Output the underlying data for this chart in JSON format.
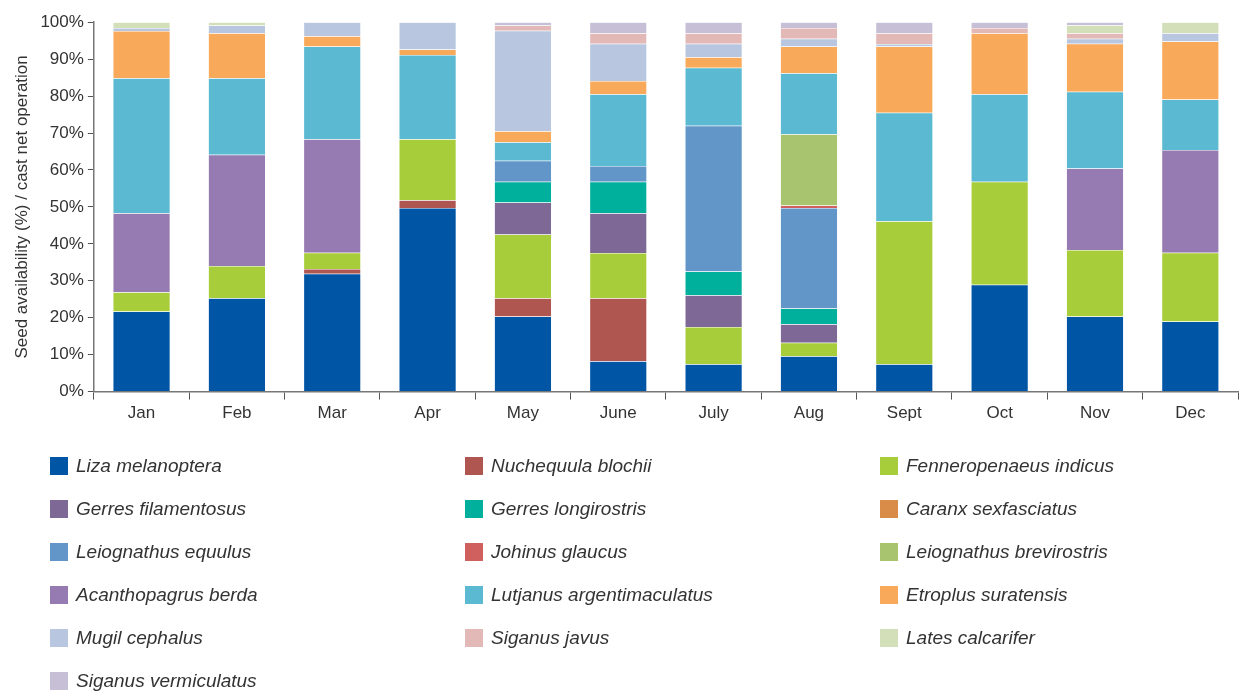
{
  "chart_data": {
    "type": "bar",
    "stacked": true,
    "ylabel": "Seed availability (%) / cast net operation",
    "categories": [
      "Jan",
      "Feb",
      "Mar",
      "Apr",
      "May",
      "June",
      "July",
      "Aug",
      "Sept",
      "Oct",
      "Nov",
      "Dec"
    ],
    "ylim": [
      0,
      100
    ],
    "yticks": [
      {
        "value": 0,
        "label": "0%"
      },
      {
        "value": 10,
        "label": "10%"
      },
      {
        "value": 20,
        "label": "20%"
      },
      {
        "value": 30,
        "label": "30%"
      },
      {
        "value": 40,
        "label": "40%"
      },
      {
        "value": 50,
        "label": "50%"
      },
      {
        "value": 60,
        "label": "60%"
      },
      {
        "value": 70,
        "label": "70%"
      },
      {
        "value": 80,
        "label": "80%"
      },
      {
        "value": 90,
        "label": "90%"
      },
      {
        "value": 100,
        "label": "100%"
      }
    ],
    "grid": false,
    "legend": "bottom",
    "series": [
      {
        "name": "Liza melanoptera",
        "color": "#0055a5",
        "values": [
          21.7,
          25.3,
          31.9,
          49.7,
          20.3,
          8.2,
          7.4,
          9.6,
          7.4,
          28.9,
          20.3,
          19.0
        ]
      },
      {
        "name": "Nuchequula blochii",
        "color": "#b05651",
        "values": [
          null,
          null,
          1.3,
          2.1,
          5.0,
          17.1,
          null,
          null,
          null,
          null,
          null,
          null
        ]
      },
      {
        "name": "Fenneropenaeus indicus",
        "color": "#a8cd3a",
        "values": [
          5.2,
          8.7,
          4.4,
          16.5,
          17.2,
          12.2,
          10.1,
          3.6,
          38.7,
          27.9,
          18.0,
          18.6
        ]
      },
      {
        "name": "Gerres filamentosus",
        "color": "#7e6896",
        "values": [
          null,
          null,
          null,
          null,
          8.7,
          10.8,
          8.6,
          5.0,
          null,
          null,
          null,
          null
        ]
      },
      {
        "name": "Gerres longirostris",
        "color": "#00b09d",
        "values": [
          null,
          null,
          null,
          null,
          5.6,
          8.5,
          6.4,
          4.3,
          null,
          null,
          null,
          null
        ]
      },
      {
        "name": "Caranx sexfasciatus",
        "color": "#d98c47",
        "values": [
          null,
          null,
          null,
          null,
          null,
          null,
          null,
          null,
          null,
          null,
          null,
          null
        ]
      },
      {
        "name": "Leiognathus equulus",
        "color": "#6396c8",
        "values": [
          null,
          null,
          null,
          null,
          5.7,
          4.3,
          39.5,
          27.2,
          null,
          null,
          null,
          null
        ]
      },
      {
        "name": "Johinus glaucus",
        "color": "#d0605d",
        "values": [
          null,
          null,
          null,
          null,
          null,
          null,
          null,
          0.7,
          null,
          null,
          null,
          null
        ]
      },
      {
        "name": "Leiognathus brevirostris",
        "color": "#a9c46e",
        "values": [
          null,
          null,
          null,
          null,
          null,
          null,
          null,
          19.3,
          null,
          null,
          null,
          null
        ]
      },
      {
        "name": "Acanthopagrus berda",
        "color": "#957bb1",
        "values": [
          21.4,
          30.1,
          30.7,
          null,
          null,
          null,
          null,
          null,
          null,
          null,
          22.1,
          27.8
        ]
      },
      {
        "name": "Lutjanus argentimaculatus",
        "color": "#5bb9d2",
        "values": [
          36.5,
          20.7,
          25.1,
          22.8,
          5.0,
          19.4,
          15.7,
          16.5,
          29.4,
          23.7,
          20.8,
          13.7
        ]
      },
      {
        "name": "Etroplus suratensis",
        "color": "#f9a95a",
        "values": [
          12.8,
          12.2,
          2.8,
          1.5,
          3.0,
          3.6,
          2.8,
          7.2,
          17.9,
          16.5,
          13.0,
          15.7
        ]
      },
      {
        "name": "Mugil cephalus",
        "color": "#b8c7df",
        "values": [
          0.8,
          2.1,
          3.8,
          7.4,
          27.2,
          10.1,
          3.7,
          2.1,
          0.7,
          null,
          1.3,
          2.2
        ]
      },
      {
        "name": "Siganus javus",
        "color": "#e3b9b8",
        "values": [
          null,
          null,
          null,
          null,
          1.4,
          2.8,
          2.8,
          2.9,
          2.9,
          1.4,
          1.5,
          null
        ]
      },
      {
        "name": "Lates calcarifer",
        "color": "#d2dfb9",
        "values": [
          1.6,
          0.9,
          null,
          null,
          null,
          null,
          null,
          null,
          null,
          null,
          2.2,
          3.0
        ]
      },
      {
        "name": "Siganus vermiculatus",
        "color": "#c6bfd6",
        "values": [
          null,
          null,
          null,
          null,
          0.9,
          3.0,
          3.0,
          1.6,
          3.0,
          1.6,
          0.8,
          null
        ]
      }
    ]
  }
}
